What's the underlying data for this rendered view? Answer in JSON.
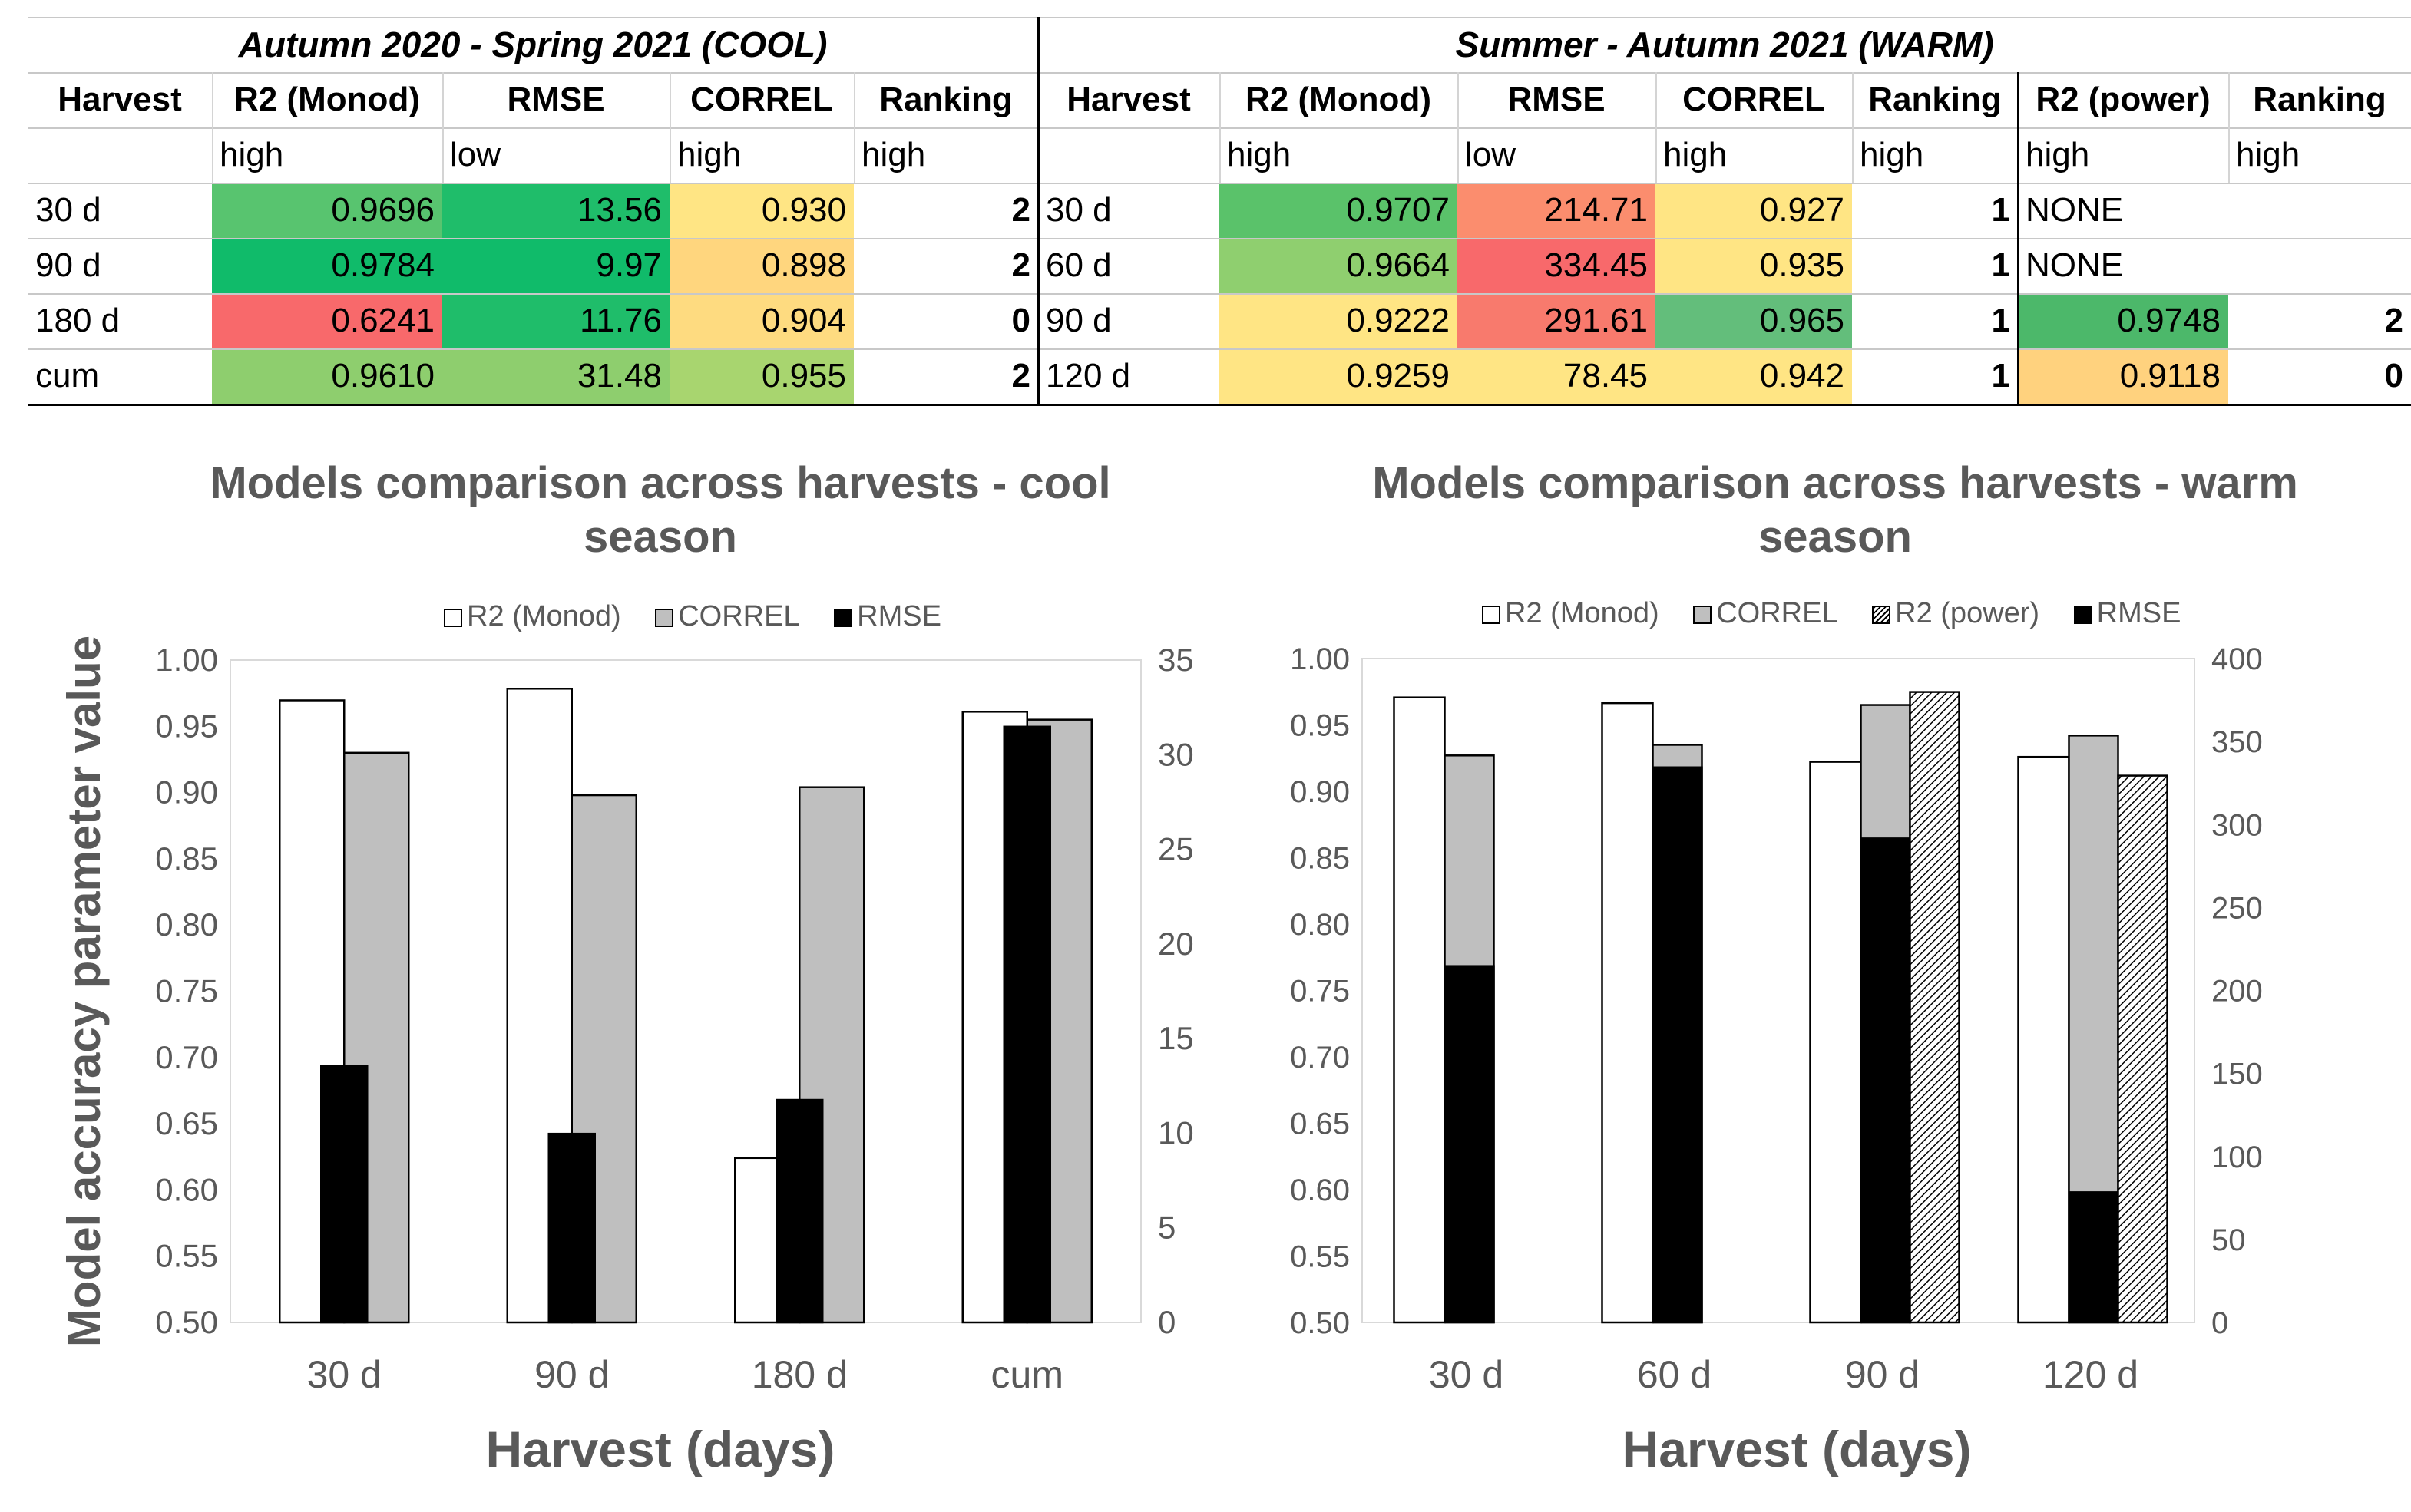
{
  "table": {
    "cool_title": "Autumn 2020 - Spring 2021 (COOL)",
    "warm_title": "Summer - Autumn 2021 (WARM)",
    "headers": [
      "Harvest",
      "R2 (Monod)",
      "RMSE",
      "CORREL",
      "Ranking",
      "Harvest",
      "R2 (Monod)",
      "RMSE",
      "CORREL",
      "Ranking",
      "R2 (power)",
      "Ranking"
    ],
    "criteria": [
      "",
      "high",
      "low",
      "high",
      "high",
      "",
      "high",
      "low",
      "high",
      "high",
      "high",
      "high"
    ],
    "rows": [
      [
        "30 d",
        "0.9696",
        "13.56",
        "0.930",
        "2",
        "30 d",
        "0.9707",
        "214.71",
        "0.927",
        "1",
        "NONE",
        ""
      ],
      [
        "90 d",
        "0.9784",
        "9.97",
        "0.898",
        "2",
        "60 d",
        "0.9664",
        "334.45",
        "0.935",
        "1",
        "NONE",
        ""
      ],
      [
        "180 d",
        "0.6241",
        "11.76",
        "0.904",
        "0",
        "90 d",
        "0.9222",
        "291.61",
        "0.965",
        "1",
        "0.9748",
        "2"
      ],
      [
        "cum",
        "0.9610",
        "31.48",
        "0.955",
        "2",
        "120 d",
        "0.9259",
        "78.45",
        "0.942",
        "1",
        "0.9118",
        "0"
      ]
    ],
    "cell_colors": [
      [
        "#ffffff",
        "#58c46f",
        "#1fbd6a",
        "#ffe584",
        "#ffffff",
        "#ffffff",
        "#5ac26a",
        "#fb8d6e",
        "#ffe584",
        "#ffffff",
        "#ffffff",
        "#ffffff"
      ],
      [
        "#ffffff",
        "#10bb6a",
        "#10bb6a",
        "#ffd67e",
        "#ffffff",
        "#ffffff",
        "#8fcf6f",
        "#f8696b",
        "#ffe584",
        "#ffffff",
        "#ffffff",
        "#ffffff"
      ],
      [
        "#ffffff",
        "#f8696b",
        "#1fbd6a",
        "#fedb80",
        "#ffffff",
        "#ffffff",
        "#ffe584",
        "#f87a6d",
        "#63be7b",
        "#ffffff",
        "#4cb86a",
        "#ffffff"
      ],
      [
        "#ffffff",
        "#8ece6e",
        "#8ece6e",
        "#a8d56f",
        "#ffffff",
        "#ffffff",
        "#ffe584",
        "#ffe584",
        "#ffe584",
        "#ffffff",
        "#ffd27e",
        "#ffffff"
      ]
    ]
  },
  "chart_data": [
    {
      "type": "bar",
      "title": "Models comparison across harvests - cool season",
      "xlabel": "Harvest (days)",
      "ylabel": "Model accuracy parameter value",
      "categories": [
        "30 d",
        "90 d",
        "180 d",
        "cum"
      ],
      "ylim": [
        0.5,
        1.0
      ],
      "yticks": [
        "1.00",
        "0.95",
        "0.90",
        "0.85",
        "0.80",
        "0.75",
        "0.70",
        "0.65",
        "0.60",
        "0.55",
        "0.50"
      ],
      "y2lim": [
        0,
        35
      ],
      "y2ticks": [
        "35",
        "30",
        "25",
        "20",
        "15",
        "10",
        "5",
        "0"
      ],
      "series": [
        {
          "name": "R2 (Monod)",
          "axis": "left",
          "fill": "white",
          "values": [
            0.9696,
            0.9784,
            0.6241,
            0.961
          ]
        },
        {
          "name": "CORREL",
          "axis": "left",
          "fill": "gray",
          "values": [
            0.93,
            0.898,
            0.904,
            0.955
          ]
        },
        {
          "name": "RMSE",
          "axis": "right",
          "fill": "black",
          "values": [
            13.56,
            9.97,
            11.76,
            31.48
          ]
        }
      ]
    },
    {
      "type": "bar",
      "title": "Models comparison across harvests - warm season",
      "xlabel": "Harvest (days)",
      "categories": [
        "30 d",
        "60 d",
        "90 d",
        "120 d"
      ],
      "ylim": [
        0.5,
        1.0
      ],
      "yticks": [
        "1.00",
        "0.95",
        "0.90",
        "0.85",
        "0.80",
        "0.75",
        "0.70",
        "0.65",
        "0.60",
        "0.55",
        "0.50"
      ],
      "y2lim": [
        0,
        400
      ],
      "y2ticks": [
        "400",
        "350",
        "300",
        "250",
        "200",
        "150",
        "100",
        "50",
        "0"
      ],
      "series": [
        {
          "name": "R2 (Monod)",
          "axis": "left",
          "fill": "white",
          "values": [
            0.9707,
            0.9664,
            0.9222,
            0.9259
          ]
        },
        {
          "name": "CORREL",
          "axis": "left",
          "fill": "gray",
          "values": [
            0.927,
            0.935,
            0.965,
            0.942
          ]
        },
        {
          "name": "R2 (power)",
          "axis": "left",
          "fill": "hatched",
          "values": [
            null,
            null,
            0.9748,
            0.9118
          ]
        },
        {
          "name": "RMSE",
          "axis": "right",
          "fill": "black",
          "values": [
            214.71,
            334.45,
            291.61,
            78.45
          ]
        }
      ]
    }
  ]
}
